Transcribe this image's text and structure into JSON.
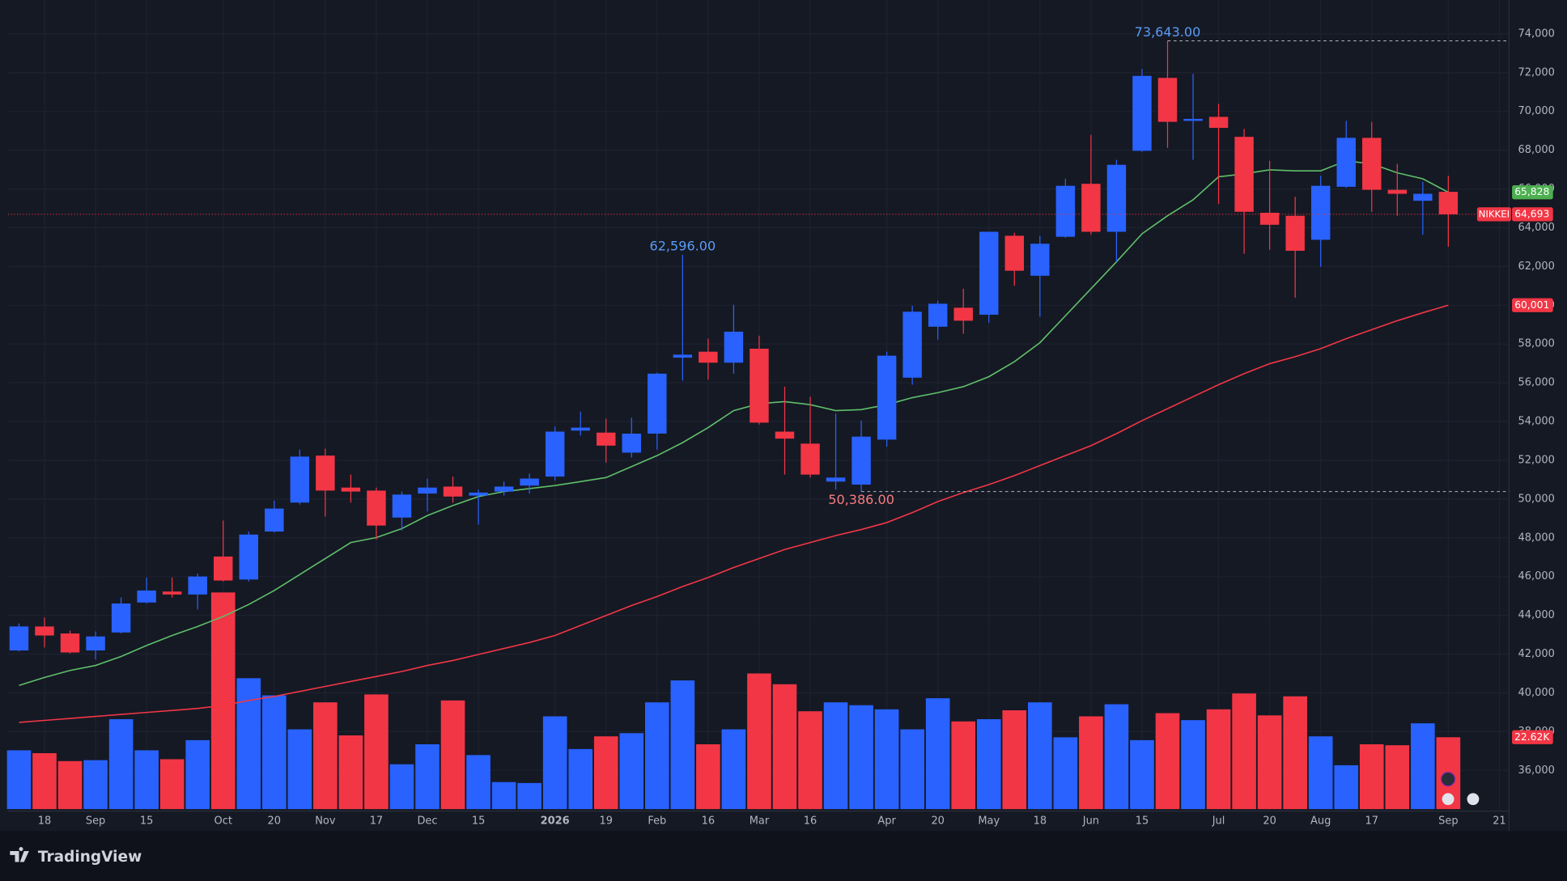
{
  "chart_data": {
    "type": "candlestick",
    "up_color": "#2962ff",
    "down_color": "#f23645",
    "categories": [
      null,
      "18",
      null,
      "Sep",
      null,
      "15",
      null,
      null,
      "Oct",
      null,
      "20",
      null,
      "Nov",
      null,
      "17",
      null,
      "Dec",
      null,
      "15",
      null,
      null,
      "2026",
      null,
      "19",
      null,
      "Feb",
      null,
      "16",
      null,
      "Mar",
      null,
      "16",
      null,
      null,
      "Apr",
      null,
      "20",
      null,
      "May",
      null,
      "18",
      null,
      "Jun",
      null,
      "15",
      null,
      null,
      "Jul",
      null,
      "20",
      null,
      "Aug",
      null,
      "17",
      null,
      null,
      "Sep",
      null,
      "21"
    ],
    "open": [
      42187,
      43425,
      43064,
      42187,
      43116,
      44662,
      45229,
      45075,
      47034,
      45848,
      48323,
      49818,
      52242,
      50592,
      50437,
      49045,
      50283,
      50643,
      50179,
      50386,
      50695,
      51159,
      53531,
      53428,
      52396,
      53376,
      57295,
      57604,
      57037,
      57759,
      53479,
      52860,
      50901,
      50746,
      53067,
      56263,
      58893,
      59872,
      59511,
      63585,
      61523,
      63533,
      66266,
      63791,
      67967,
      71731,
      69514,
      69720,
      68689,
      64771,
      64616,
      63379,
      66112,
      68637,
      65956,
      65391,
      65853,
      null,
      null
    ],
    "high": [
      43580,
      43889,
      43219,
      43167,
      44920,
      45951,
      45951,
      46158,
      48890,
      48323,
      49922,
      52551,
      52602,
      51262,
      50592,
      50386,
      51056,
      51159,
      50489,
      50901,
      51314,
      53737,
      54510,
      54149,
      54201,
      56521,
      62596,
      58275,
      60027,
      58429,
      55799,
      55284,
      54407,
      54046,
      57604,
      59975,
      60234,
      60852,
      63791,
      63740,
      63585,
      66524,
      68792,
      67503,
      72195,
      73643,
      71937,
      70391,
      69102,
      67452,
      65596,
      66678,
      69514,
      69463,
      67297,
      66369,
      66678,
      null,
      null
    ],
    "low": [
      42136,
      42342,
      42033,
      41723,
      43064,
      44611,
      44920,
      44302,
      45745,
      45745,
      48271,
      49715,
      49096,
      49818,
      47910,
      48374,
      49354,
      49818,
      48684,
      50179,
      50283,
      50952,
      53273,
      51881,
      52139,
      52551,
      56108,
      56160,
      56469,
      53840,
      51262,
      51108,
      50489,
      50386,
      52705,
      55902,
      58223,
      58532,
      59099,
      61007,
      59408,
      63482,
      63637,
      62244,
      67916,
      68122,
      67503,
      65235,
      62657,
      62863,
      60388,
      61986,
      66060,
      64822,
      64616,
      63637,
      63018,
      null,
      null
    ],
    "close": [
      43425,
      42960,
      42084,
      42909,
      44611,
      45281,
      45075,
      46003,
      45796,
      48168,
      49509,
      52190,
      50437,
      50386,
      48632,
      50231,
      50592,
      50128,
      50334,
      50643,
      51056,
      53479,
      53685,
      52757,
      53376,
      56469,
      57449,
      57037,
      58635,
      53943,
      53118,
      51262,
      51108,
      53221,
      57398,
      59666,
      60079,
      59202,
      63791,
      61780,
      63173,
      66163,
      63791,
      67246,
      71834,
      69463,
      69617,
      69153,
      64822,
      64152,
      62811,
      66163,
      68637,
      65956,
      65750,
      65750,
      64693,
      null,
      null
    ],
    "volume": [
      18.5,
      17.6,
      15.1,
      15.4,
      28.3,
      18.5,
      15.7,
      21.7,
      68.2,
      41.2,
      35.8,
      25.1,
      33.6,
      23.2,
      36.1,
      14.1,
      20.4,
      34.2,
      17.0,
      8.5,
      8.2,
      29.2,
      18.9,
      22.9,
      23.9,
      33.6,
      40.5,
      20.4,
      25.1,
      42.7,
      39.3,
      30.8,
      33.6,
      32.7,
      31.4,
      25.1,
      34.9,
      27.6,
      28.3,
      31.1,
      33.6,
      22.6,
      29.2,
      33.0,
      21.7,
      30.2,
      28.0,
      31.4,
      36.4,
      29.5,
      35.5,
      22.9,
      13.8,
      20.4,
      20.1,
      27.0,
      22.62,
      null,
      null
    ],
    "volume_ylim": [
      0,
      100
    ],
    "moving_averages": [
      {
        "color": "#5fbf6a",
        "values": [
          40383,
          40795,
          41156,
          41414,
          41878,
          42445,
          42960,
          43425,
          43940,
          44560,
          45281,
          46106,
          46931,
          47756,
          48013,
          48477,
          49148,
          49664,
          50128,
          50386,
          50540,
          50695,
          50901,
          51108,
          51675,
          52242,
          52912,
          53685,
          54562,
          54923,
          55026,
          54871,
          54562,
          54614,
          54871,
          55232,
          55490,
          55799,
          56314,
          57089,
          58068,
          59460,
          60852,
          62244,
          63688,
          64616,
          65441,
          66627,
          66782,
          66988,
          66936,
          66936,
          67452,
          67297,
          66833,
          66524,
          65828,
          null,
          null
        ]
      },
      {
        "color": "#f23645",
        "values": [
          38475,
          38578,
          38681,
          38784,
          38887,
          38990,
          39094,
          39197,
          39351,
          39609,
          39815,
          40073,
          40331,
          40589,
          40846,
          41104,
          41414,
          41671,
          41981,
          42290,
          42599,
          42960,
          43476,
          43991,
          44507,
          44971,
          45487,
          45951,
          46466,
          46931,
          47395,
          47756,
          48117,
          48426,
          48787,
          49303,
          49870,
          50334,
          50746,
          51211,
          51726,
          52242,
          52757,
          53376,
          54046,
          54665,
          55284,
          55902,
          56469,
          56985,
          57346,
          57759,
          58275,
          58739,
          59202,
          59614,
          60001,
          null,
          null
        ]
      }
    ],
    "ylim": [
      33900,
      75750
    ],
    "yticks": [
      {
        "value": 36000,
        "label": "36,000"
      },
      {
        "value": 38000,
        "label": "38,000"
      },
      {
        "value": 40000,
        "label": "40,000"
      },
      {
        "value": 42000,
        "label": "42,000"
      },
      {
        "value": 44000,
        "label": "44,000"
      },
      {
        "value": 46000,
        "label": "46,000"
      },
      {
        "value": 48000,
        "label": "48,000"
      },
      {
        "value": 50000,
        "label": "50,000"
      },
      {
        "value": 52000,
        "label": "52,000"
      },
      {
        "value": 54000,
        "label": "54,000"
      },
      {
        "value": 56000,
        "label": "56,000"
      },
      {
        "value": 58000,
        "label": "58,000"
      },
      {
        "value": 60000,
        "label": "60,000"
      },
      {
        "value": 62000,
        "label": "62,000"
      },
      {
        "value": 64000,
        "label": "64,000"
      },
      {
        "value": 66000,
        "label": "66,000"
      },
      {
        "value": 68000,
        "label": "68,000"
      },
      {
        "value": 70000,
        "label": "70,000"
      },
      {
        "value": 72000,
        "label": "72,000"
      },
      {
        "value": 74000,
        "label": "74,000"
      }
    ],
    "grid": true,
    "annotations": [
      {
        "x": 45,
        "value": 73643,
        "label": "73,643.00",
        "side": "above",
        "color": "#5b9cf6",
        "line": true
      },
      {
        "x": 26,
        "value": 62596,
        "label": "62,596.00",
        "side": "above",
        "color": "#5b9cf6",
        "line": false
      },
      {
        "x": 33,
        "value": 50386,
        "label": "50,386.00",
        "side": "below",
        "color": "#f77c80",
        "line": true
      }
    ],
    "price_tags": [
      {
        "value": 65828,
        "label": "65,828",
        "color": "#4caf50"
      },
      {
        "name": "NIKKEI",
        "value": 64693,
        "label": "64,693",
        "color": "#f23645",
        "line": true
      },
      {
        "value": 60001,
        "label": "60,001",
        "color": "#f23645"
      }
    ],
    "volume_tag": {
      "value": 22.62,
      "label": "22.62K",
      "color": "#f23645"
    }
  },
  "brand": "TradingView"
}
